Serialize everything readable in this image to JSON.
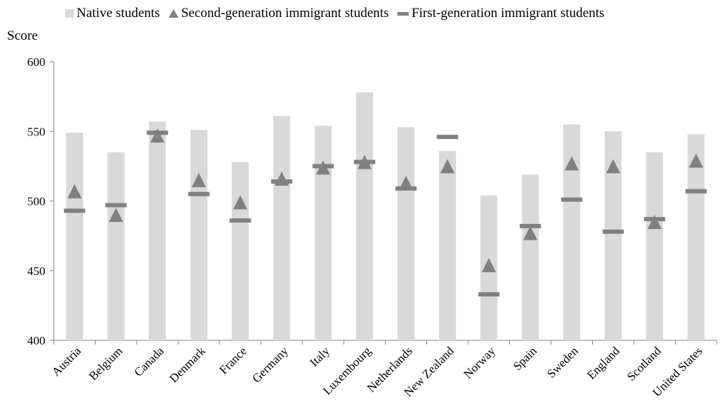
{
  "chart_data": {
    "type": "bar",
    "ylabel": "Score",
    "ylim": [
      400,
      600
    ],
    "yticks": [
      "400",
      "450",
      "500",
      "550",
      "600"
    ],
    "grid": false,
    "legend_position": "top",
    "categories": [
      "Austria",
      "Belgium",
      "Canada",
      "Denmark",
      "France",
      "Germany",
      "Italy",
      "Luxembourg",
      "Netherlands",
      "New Zealand",
      "Norway",
      "Spain",
      "Sweden",
      "England",
      "Scotland",
      "United States"
    ],
    "series": [
      {
        "name": "Native students",
        "marker": "bar",
        "color": "#d9d9d9",
        "values": [
          549,
          535,
          557,
          551,
          528,
          561,
          554,
          578,
          553,
          536,
          504,
          519,
          555,
          550,
          535,
          548
        ]
      },
      {
        "name": "Second-generation immigrant students",
        "marker": "triangle",
        "color": "#808080",
        "values": [
          506,
          489,
          546,
          514,
          498,
          515,
          523,
          527,
          512,
          524,
          453,
          476,
          526,
          524,
          484,
          528
        ]
      },
      {
        "name": "First-generation immigrant students",
        "marker": "dash",
        "color": "#808080",
        "values": [
          493,
          497,
          549,
          505,
          486,
          514,
          525,
          528,
          509,
          546,
          433,
          482,
          501,
          478,
          487,
          507
        ]
      }
    ]
  }
}
